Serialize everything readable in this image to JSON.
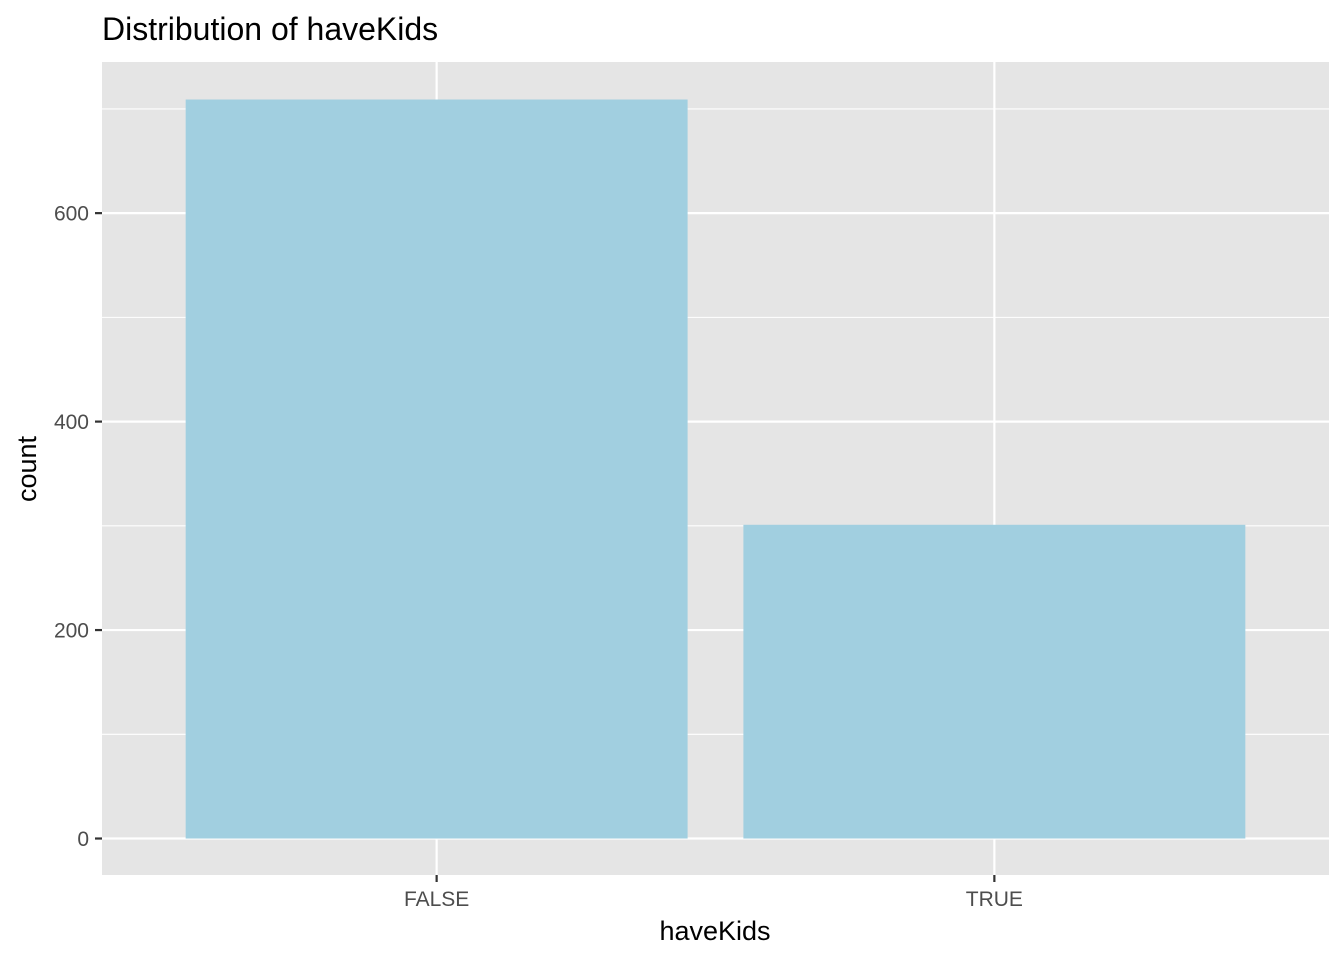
{
  "chart_data": {
    "type": "bar",
    "title": "Distribution of haveKids",
    "xlabel": "haveKids",
    "ylabel": "count",
    "categories": [
      "FALSE",
      "TRUE"
    ],
    "values": [
      709,
      301
    ],
    "ylim": [
      -35,
      745
    ],
    "yticks": [
      0,
      200,
      400,
      600
    ],
    "ytick_labels": [
      "0",
      "200",
      "400",
      "600"
    ],
    "grid": true,
    "legend": "none"
  },
  "colors": {
    "bar_fill": "#a1cfe0",
    "panel_background": "#e5e5e5",
    "grid_line": "#ffffff",
    "tick_label": "#4d4d4d",
    "text": "#000000"
  }
}
